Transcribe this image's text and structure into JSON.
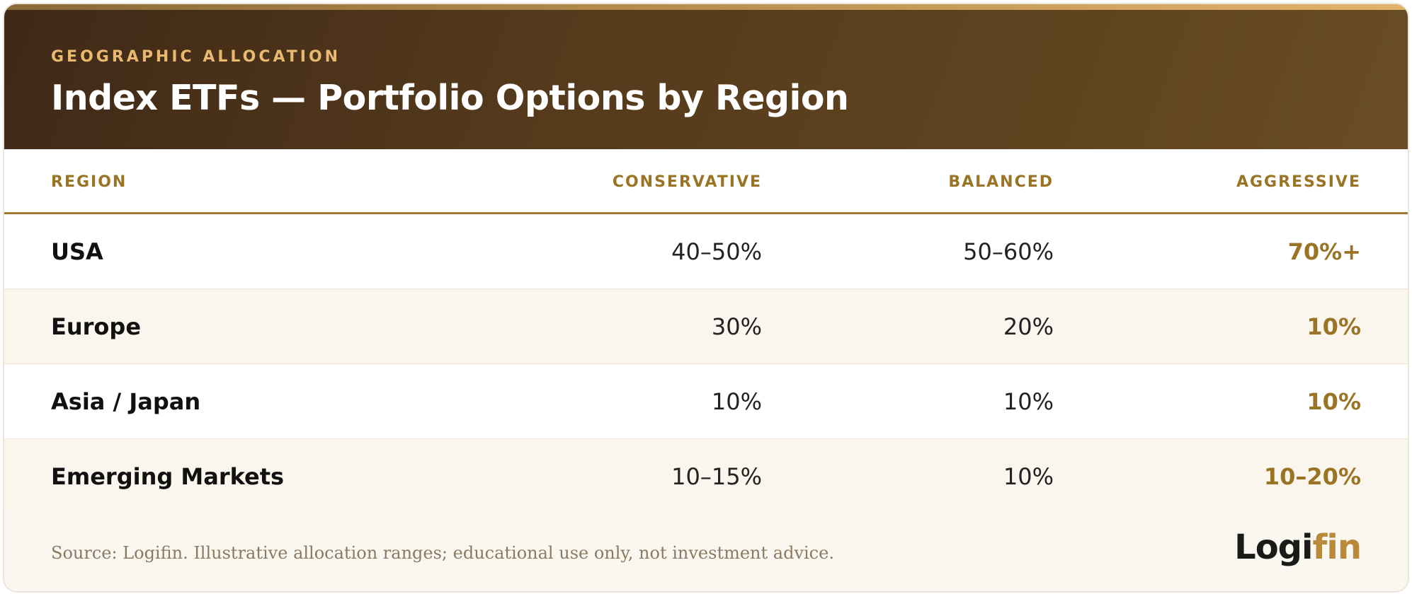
{
  "header": {
    "eyebrow": "GEOGRAPHIC ALLOCATION",
    "title": "Index ETFs — Portfolio Options by Region"
  },
  "columns": {
    "region": "REGION",
    "conservative": "CONSERVATIVE",
    "balanced": "BALANCED",
    "aggressive": "AGGRESSIVE"
  },
  "rows": [
    {
      "region": "USA",
      "conservative": "40–50%",
      "balanced": "50–60%",
      "aggressive": "70%+"
    },
    {
      "region": "Europe",
      "conservative": "30%",
      "balanced": "20%",
      "aggressive": "10%"
    },
    {
      "region": "Asia / Japan",
      "conservative": "10%",
      "balanced": "10%",
      "aggressive": "10%"
    },
    {
      "region": "Emerging Markets",
      "conservative": "10–15%",
      "balanced": "10%",
      "aggressive": "10–20%"
    }
  ],
  "footer": {
    "source": "Source: Logifin. Illustrative allocation ranges; educational use only, not investment advice.",
    "logo_part1": "Logi",
    "logo_part2": "fin"
  },
  "colors": {
    "accent": "#9a7424",
    "header_dark": "#3f2917",
    "header_light": "#6a4d26",
    "eyebrow": "#e8b96f"
  }
}
